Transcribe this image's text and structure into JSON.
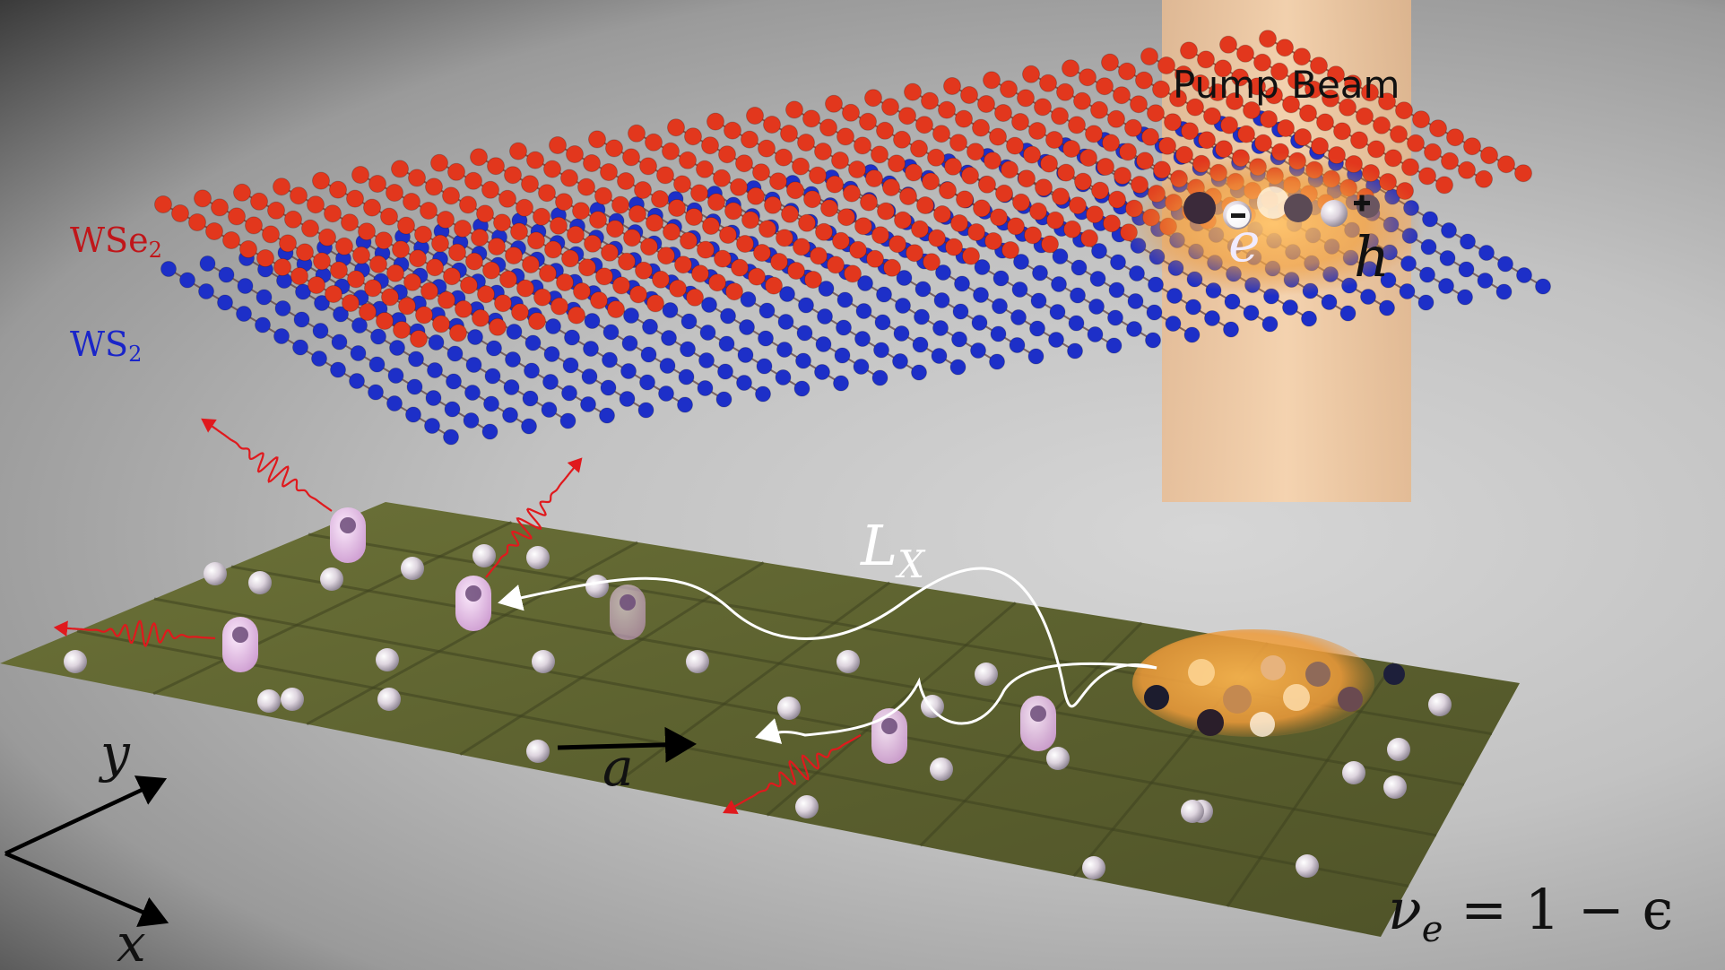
{
  "labels": {
    "pump_beam": "Pump Beam",
    "layer_top_main": "WSe",
    "layer_top_sub": "2",
    "layer_bottom_main": "WS",
    "layer_bottom_sub": "2",
    "electron": "e",
    "hole": "h",
    "diffusion_length_main": "L",
    "diffusion_length_sub": "X",
    "lattice_constant": "a",
    "axis_y": "y",
    "axis_x": "x",
    "filling_main": "ν",
    "filling_sub": "e",
    "filling_rest": " = 1 − ϵ"
  },
  "colors": {
    "wse2": "#c0161a",
    "ws2": "#1a25c9",
    "moire_surface": "#5d6332",
    "pump_beam": "#f3c79a",
    "emission_wave": "#e0191d",
    "exciton": "#e8c2e8",
    "electron_sphere": "#c8bfcc"
  }
}
